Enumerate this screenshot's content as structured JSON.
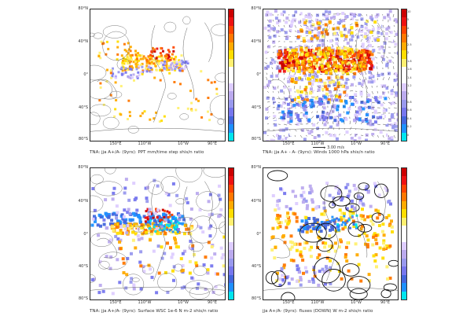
{
  "colors": {
    "scale": [
      "#00e5ee",
      "#1e90ff",
      "#4466dd",
      "#7777ee",
      "#9999ee",
      "#bbaaee",
      "#ddccff",
      "#ffffff",
      "#ffffff",
      "#fff070",
      "#ffdd00",
      "#ffaa00",
      "#ff7700",
      "#ff4400",
      "#ee1111",
      "#cc0000"
    ]
  },
  "panels": [
    {
      "id": "ppt",
      "caption": "TNA: jja A+/A- (9yrs): PPT mm/time step shis/n ratio",
      "lat_labels": [
        "80°N",
        "40°N",
        "0°",
        "40°S",
        "80°S"
      ],
      "lon_labels": [
        "150°E",
        "110°W",
        "10°W",
        "90°E"
      ],
      "cbar_labels": [
        "",
        "",
        "",
        "",
        "",
        "",
        "",
        "",
        "",
        "",
        "",
        "",
        "",
        "",
        "",
        ""
      ]
    },
    {
      "id": "winds",
      "caption": "TNA: jja A+ - A- (9yrs): Winds 1000 hPa shis/n ratio",
      "vector_ref": "3.00 m/s",
      "lat_labels": [
        "80°N",
        "40°N",
        "0°",
        "40°S",
        "80°S"
      ],
      "lon_labels": [
        "150°E",
        "110°W",
        "10°W",
        "90°E"
      ],
      "cbar_labels": [
        "10",
        "5",
        "4",
        "3",
        "2.5",
        "2",
        "1.8",
        "1.6",
        "1.4",
        "1.2",
        "1",
        "0.8",
        "0.6",
        "0.4",
        "0.2",
        "0"
      ]
    },
    {
      "id": "wsc",
      "caption": "TNA: jja A+/A- (9yrs): Surface WSC 1e-6 N m-2 shis/n ratio",
      "lat_labels": [
        "80°N",
        "40°N",
        "0°",
        "40°S",
        "80°S"
      ],
      "lon_labels": [
        "150°E",
        "110°W",
        "10°W",
        "90°E"
      ],
      "cbar_labels": [
        "",
        "",
        "",
        "",
        "",
        "",
        "",
        "",
        "",
        "",
        "",
        "",
        "",
        "",
        "",
        ""
      ]
    },
    {
      "id": "flux",
      "caption": "jja A+/A- (9yrs): fluxes (DOWN) W m-2 shis/n ratio",
      "lat_labels": [
        "80°N",
        "40°N",
        "0°",
        "40°S",
        "80°S"
      ],
      "lon_labels": [
        "150°E",
        "110°W",
        "10°W",
        "90°E"
      ],
      "cbar_labels": [
        "",
        "",
        "",
        "",
        "",
        "",
        "",
        "",
        "",
        "",
        "",
        "",
        "",
        "",
        "",
        ""
      ]
    }
  ]
}
